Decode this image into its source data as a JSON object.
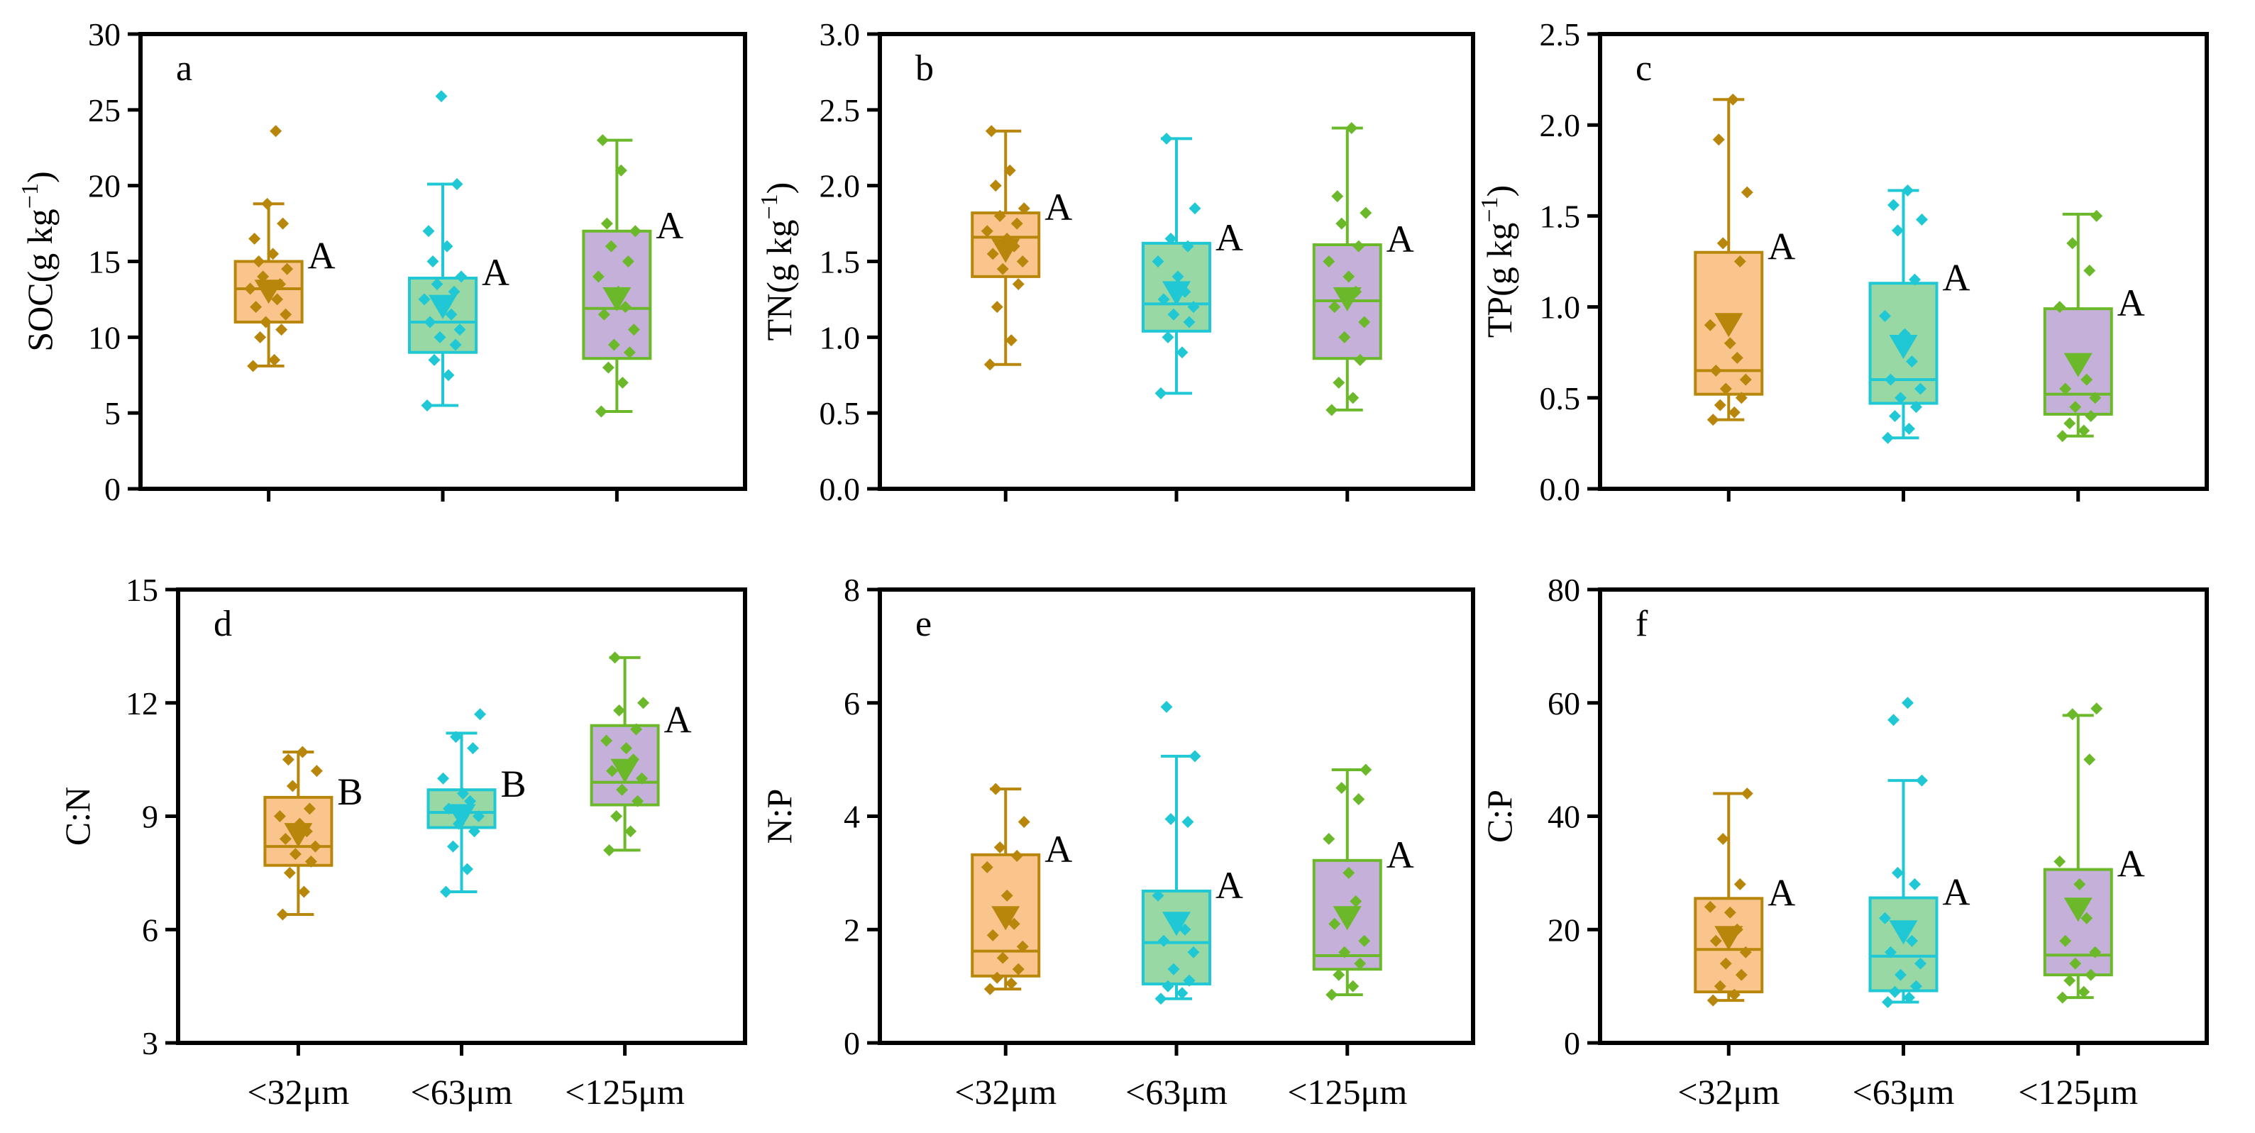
{
  "colors": {
    "c32": {
      "line": "#B8860B",
      "fill": "#F9C58D"
    },
    "c63": {
      "line": "#1FC8D4",
      "fill": "#98D8A4"
    },
    "c125": {
      "line": "#6BB82A",
      "fill": "#C5B0DA"
    }
  },
  "chart_data": [
    {
      "type": "box",
      "panel": "a",
      "ylabel": "SOC(g kg",
      "ylabel_sup": "−1",
      "ylabel_end": ")",
      "ylim": [
        0,
        30
      ],
      "yticks": [
        0,
        5,
        10,
        15,
        20,
        25,
        30
      ],
      "ytick_labels": [
        "0",
        "5",
        "10",
        "15",
        "20",
        "25",
        "30"
      ],
      "categories": [
        "<32μm",
        "<63μm",
        "<125μm"
      ],
      "boxes": [
        {
          "min": 8.1,
          "q1": 11.0,
          "median": 13.2,
          "q3": 15.0,
          "max": 18.8,
          "mean": 13.0,
          "letter": "A"
        },
        {
          "min": 5.5,
          "q1": 9.0,
          "median": 11.0,
          "q3": 13.9,
          "max": 20.1,
          "mean": 12.0,
          "letter": "A"
        },
        {
          "min": 5.1,
          "q1": 8.6,
          "median": 11.9,
          "q3": 17.0,
          "max": 23.0,
          "mean": 12.5,
          "letter": "A"
        }
      ],
      "points": [
        [
          8.1,
          8.5,
          10,
          10.5,
          11,
          11.5,
          12,
          12.5,
          13,
          13.2,
          13.5,
          14,
          14.5,
          15,
          15.5,
          16.5,
          17.5,
          18.8,
          23.6
        ],
        [
          5.5,
          7.5,
          8.5,
          9.5,
          10,
          10.5,
          11,
          11.5,
          12,
          12.5,
          13,
          13.5,
          14,
          15,
          16,
          17,
          20.1,
          25.9
        ],
        [
          5.1,
          7,
          8,
          9,
          9.5,
          10.5,
          11.5,
          12,
          13,
          14,
          15,
          16,
          17,
          17.5,
          21,
          23
        ]
      ]
    },
    {
      "type": "box",
      "panel": "b",
      "ylabel": "TN(g kg",
      "ylabel_sup": "−1",
      "ylabel_end": ")",
      "ylim": [
        0,
        3.0
      ],
      "yticks": [
        0,
        0.5,
        1.0,
        1.5,
        2.0,
        2.5,
        3.0
      ],
      "ytick_labels": [
        "0.0",
        "0.5",
        "1.0",
        "1.5",
        "2.0",
        "2.5",
        "3.0"
      ],
      "categories": [
        "<32μm",
        "<63μm",
        "<125μm"
      ],
      "boxes": [
        {
          "min": 0.82,
          "q1": 1.4,
          "median": 1.66,
          "q3": 1.82,
          "max": 2.36,
          "mean": 1.57,
          "letter": "A"
        },
        {
          "min": 0.63,
          "q1": 1.04,
          "median": 1.22,
          "q3": 1.62,
          "max": 2.31,
          "mean": 1.29,
          "letter": "A"
        },
        {
          "min": 0.52,
          "q1": 0.86,
          "median": 1.24,
          "q3": 1.61,
          "max": 2.38,
          "mean": 1.25,
          "letter": "A"
        }
      ],
      "points": [
        [
          0.82,
          0.98,
          1.2,
          1.35,
          1.45,
          1.5,
          1.55,
          1.6,
          1.65,
          1.7,
          1.75,
          1.8,
          1.85,
          2.0,
          2.1,
          2.36
        ],
        [
          0.63,
          0.9,
          1.0,
          1.1,
          1.15,
          1.2,
          1.25,
          1.3,
          1.4,
          1.5,
          1.6,
          1.65,
          1.85,
          2.31
        ],
        [
          0.52,
          0.6,
          0.7,
          0.85,
          1.0,
          1.1,
          1.2,
          1.3,
          1.4,
          1.5,
          1.6,
          1.75,
          1.82,
          1.93,
          2.38
        ]
      ]
    },
    {
      "type": "box",
      "panel": "c",
      "ylabel": "TP(g kg",
      "ylabel_sup": "−1",
      "ylabel_end": ")",
      "ylim": [
        0,
        2.5
      ],
      "yticks": [
        0,
        0.5,
        1.0,
        1.5,
        2.0,
        2.5
      ],
      "ytick_labels": [
        "0.0",
        "0.5",
        "1.0",
        "1.5",
        "2.0",
        "2.5"
      ],
      "categories": [
        "<32μm",
        "<63μm",
        "<125μm"
      ],
      "boxes": [
        {
          "min": 0.38,
          "q1": 0.52,
          "median": 0.65,
          "q3": 1.3,
          "max": 2.14,
          "mean": 0.9,
          "letter": "A"
        },
        {
          "min": 0.28,
          "q1": 0.47,
          "median": 0.6,
          "q3": 1.13,
          "max": 1.64,
          "mean": 0.78,
          "letter": "A"
        },
        {
          "min": 0.29,
          "q1": 0.41,
          "median": 0.52,
          "q3": 0.99,
          "max": 1.51,
          "mean": 0.68,
          "letter": "A"
        }
      ],
      "points": [
        [
          0.38,
          0.42,
          0.46,
          0.5,
          0.55,
          0.6,
          0.65,
          0.72,
          0.8,
          0.9,
          1.25,
          1.35,
          1.63,
          1.92,
          2.14
        ],
        [
          0.28,
          0.33,
          0.4,
          0.45,
          0.5,
          0.55,
          0.6,
          0.7,
          0.85,
          0.95,
          1.15,
          1.42,
          1.48,
          1.56,
          1.64
        ],
        [
          0.29,
          0.32,
          0.36,
          0.4,
          0.45,
          0.5,
          0.55,
          0.6,
          0.7,
          1.0,
          1.2,
          1.35,
          1.5
        ]
      ]
    },
    {
      "type": "box",
      "panel": "d",
      "ylabel": "C:N",
      "ylabel_sup": "",
      "ylabel_end": "",
      "ylim": [
        3,
        15
      ],
      "yticks": [
        3,
        6,
        9,
        12,
        15
      ],
      "ytick_labels": [
        "3",
        "6",
        "9",
        "12",
        "15"
      ],
      "categories": [
        "<32μm",
        "<63μm",
        "<125μm"
      ],
      "boxes": [
        {
          "min": 6.4,
          "q1": 7.7,
          "median": 8.2,
          "q3": 9.5,
          "max": 10.7,
          "mean": 8.5,
          "letter": "B"
        },
        {
          "min": 7.0,
          "q1": 8.7,
          "median": 9.1,
          "q3": 9.7,
          "max": 11.2,
          "mean": 9.0,
          "letter": "B"
        },
        {
          "min": 8.1,
          "q1": 9.3,
          "median": 9.9,
          "q3": 11.4,
          "max": 13.2,
          "mean": 10.2,
          "letter": "A"
        }
      ],
      "points": [
        [
          6.4,
          7.0,
          7.5,
          7.8,
          8.0,
          8.2,
          8.4,
          8.6,
          8.8,
          9.0,
          9.2,
          9.8,
          10.2,
          10.5,
          10.7
        ],
        [
          7.0,
          7.6,
          8.2,
          8.6,
          8.8,
          9.0,
          9.2,
          9.4,
          9.6,
          10.0,
          10.8,
          11.1,
          11.7
        ],
        [
          8.1,
          8.6,
          9.0,
          9.4,
          9.7,
          10.0,
          10.2,
          10.5,
          10.8,
          11.0,
          11.3,
          11.8,
          12.0,
          13.2
        ]
      ]
    },
    {
      "type": "box",
      "panel": "e",
      "ylabel": "N:P",
      "ylabel_sup": "",
      "ylabel_end": "",
      "ylim": [
        0,
        8
      ],
      "yticks": [
        0,
        2,
        4,
        6,
        8
      ],
      "ytick_labels": [
        "0",
        "2",
        "4",
        "6",
        "8"
      ],
      "categories": [
        "<32μm",
        "<63μm",
        "<125μm"
      ],
      "boxes": [
        {
          "min": 0.95,
          "q1": 1.18,
          "median": 1.62,
          "q3": 3.32,
          "max": 4.48,
          "mean": 2.2,
          "letter": "A"
        },
        {
          "min": 0.78,
          "q1": 1.04,
          "median": 1.77,
          "q3": 2.68,
          "max": 5.06,
          "mean": 2.1,
          "letter": "A"
        },
        {
          "min": 0.85,
          "q1": 1.3,
          "median": 1.54,
          "q3": 3.22,
          "max": 4.82,
          "mean": 2.2,
          "letter": "A"
        }
      ],
      "points": [
        [
          0.95,
          1.05,
          1.15,
          1.3,
          1.5,
          1.7,
          1.9,
          2.1,
          2.6,
          3.1,
          3.3,
          3.45,
          3.9,
          4.48
        ],
        [
          0.78,
          0.88,
          1.0,
          1.1,
          1.3,
          1.6,
          1.8,
          2.0,
          2.2,
          2.6,
          3.9,
          3.95,
          5.06,
          5.93
        ],
        [
          0.85,
          1.0,
          1.2,
          1.4,
          1.6,
          1.8,
          2.1,
          2.5,
          3.0,
          3.6,
          4.3,
          4.5,
          4.82
        ]
      ]
    },
    {
      "type": "box",
      "panel": "f",
      "ylabel": "C:P",
      "ylabel_sup": "",
      "ylabel_end": "",
      "ylim": [
        0,
        80
      ],
      "yticks": [
        0,
        20,
        40,
        60,
        80
      ],
      "ytick_labels": [
        "0",
        "20",
        "40",
        "60",
        "80"
      ],
      "categories": [
        "<32μm",
        "<63μm",
        "<125μm"
      ],
      "boxes": [
        {
          "min": 7.5,
          "q1": 9.0,
          "median": 16.5,
          "q3": 25.5,
          "max": 44.0,
          "mean": 18.5,
          "letter": "A"
        },
        {
          "min": 7.2,
          "q1": 9.2,
          "median": 15.3,
          "q3": 25.6,
          "max": 46.3,
          "mean": 19.5,
          "letter": "A"
        },
        {
          "min": 8.0,
          "q1": 12.0,
          "median": 15.5,
          "q3": 30.6,
          "max": 57.8,
          "mean": 23.5,
          "letter": "A"
        }
      ],
      "points": [
        [
          7.5,
          8.5,
          10,
          12,
          14,
          16,
          18,
          20,
          23,
          24,
          28,
          36,
          44
        ],
        [
          7.2,
          8,
          9,
          10,
          12,
          14,
          16,
          18,
          20,
          22,
          28,
          30,
          46.3,
          57,
          60
        ],
        [
          8,
          9,
          11,
          12,
          14,
          16,
          18,
          22,
          28,
          32,
          50,
          58,
          59
        ]
      ]
    }
  ]
}
